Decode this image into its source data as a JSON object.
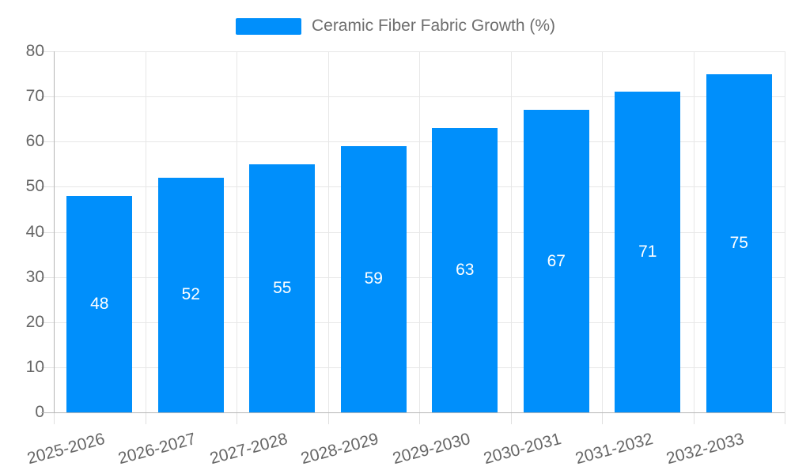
{
  "chart_data": {
    "type": "bar",
    "title": "Ceramic Fiber Fabric Growth (%)",
    "legend_position": "top",
    "categories": [
      "2025-2026",
      "2026-2027",
      "2027-2028",
      "2028-2029",
      "2029-2030",
      "2030-2031",
      "2031-2032",
      "2032-2033"
    ],
    "values": [
      48,
      52,
      55,
      59,
      63,
      67,
      71,
      75
    ],
    "xlabel": "",
    "ylabel": "",
    "ylim": [
      0,
      80
    ],
    "yticks": [
      0,
      10,
      20,
      30,
      40,
      50,
      60,
      70,
      80
    ],
    "grid": "on",
    "colors": {
      "bar": "#008FFB",
      "value_label": "#FFFFFF",
      "axis_label": "#666666",
      "legend_text": "#6E6E6E",
      "gridline": "#E7E7E7",
      "axis_line": "#B6B6B6",
      "background": "#FFFFFF"
    }
  }
}
